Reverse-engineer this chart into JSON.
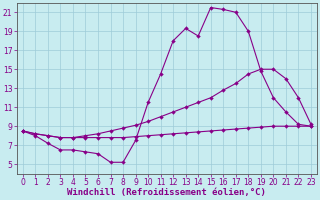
{
  "bg_color": "#c8ecf0",
  "line_color": "#880088",
  "grid_color": "#9eccd8",
  "xlabel": "Windchill (Refroidissement éolien,°C)",
  "xlabel_fontsize": 6.5,
  "xlim": [
    -0.5,
    23.5
  ],
  "ylim": [
    4,
    22
  ],
  "xticks": [
    0,
    1,
    2,
    3,
    4,
    5,
    6,
    7,
    8,
    9,
    10,
    11,
    12,
    13,
    14,
    15,
    16,
    17,
    18,
    19,
    20,
    21,
    22,
    23
  ],
  "yticks": [
    5,
    7,
    9,
    11,
    13,
    15,
    17,
    19,
    21
  ],
  "series1_x": [
    0,
    1,
    2,
    3,
    4,
    5,
    6,
    7,
    8,
    9,
    10,
    11,
    12,
    13,
    14,
    15,
    16,
    17,
    18,
    19,
    20,
    21,
    22,
    23
  ],
  "series1_y": [
    8.5,
    8.0,
    7.2,
    6.5,
    6.5,
    6.3,
    6.1,
    5.2,
    5.2,
    7.5,
    11.5,
    14.5,
    18.0,
    19.3,
    18.5,
    21.5,
    21.3,
    21.0,
    19.0,
    14.8,
    12.0,
    10.5,
    9.2,
    9.0
  ],
  "series2_x": [
    0,
    1,
    2,
    3,
    4,
    5,
    6,
    7,
    8,
    9,
    10,
    11,
    12,
    13,
    14,
    15,
    16,
    17,
    18,
    19,
    20,
    21,
    22,
    23
  ],
  "series2_y": [
    8.5,
    8.2,
    8.0,
    7.8,
    7.8,
    8.0,
    8.2,
    8.5,
    8.8,
    9.1,
    9.5,
    10.0,
    10.5,
    11.0,
    11.5,
    12.0,
    12.8,
    13.5,
    14.5,
    15.0,
    15.0,
    14.0,
    12.0,
    9.2
  ],
  "series3_x": [
    0,
    1,
    2,
    3,
    4,
    5,
    6,
    7,
    8,
    9,
    10,
    11,
    12,
    13,
    14,
    15,
    16,
    17,
    18,
    19,
    20,
    21,
    22,
    23
  ],
  "series3_y": [
    8.5,
    8.2,
    8.0,
    7.8,
    7.8,
    7.8,
    7.8,
    7.8,
    7.8,
    7.9,
    8.0,
    8.1,
    8.2,
    8.3,
    8.4,
    8.5,
    8.6,
    8.7,
    8.8,
    8.9,
    9.0,
    9.0,
    9.0,
    9.0
  ],
  "marker_size": 2.0,
  "tick_fontsize": 5.5,
  "tick_color": "#880088",
  "axis_color": "#880088",
  "spine_color": "#555555"
}
